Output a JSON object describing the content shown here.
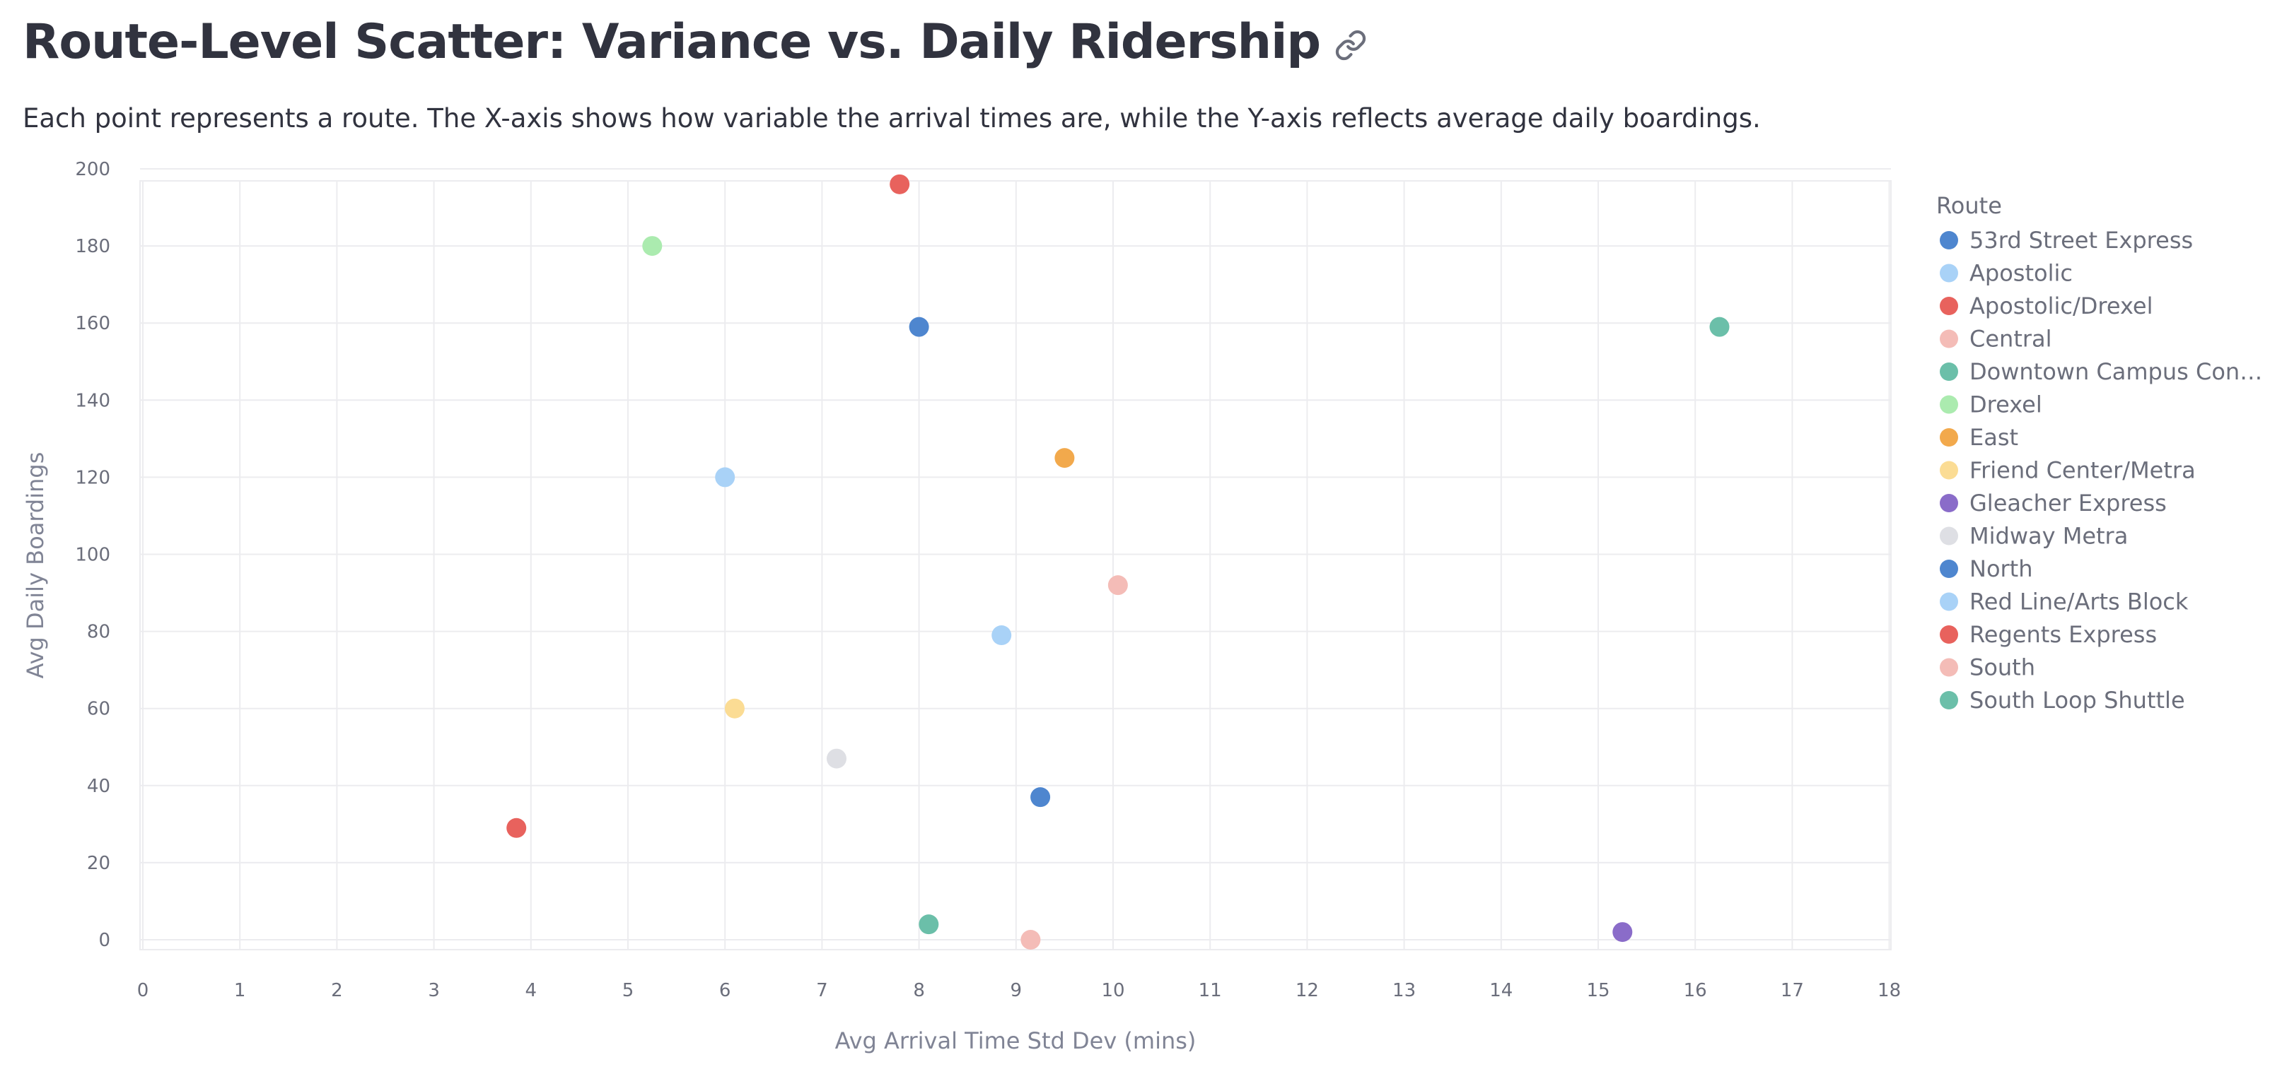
{
  "page": {
    "title": "Route-Level Scatter: Variance vs. Daily Ridership",
    "subtitle": "Each point represents a route. The X-axis shows how variable the arrival times are, while the Y-axis reflects average daily boardings."
  },
  "icons": {
    "anchor": "link-icon"
  },
  "chart_data": {
    "type": "scatter",
    "xlabel": "Avg Arrival Time Std Dev (mins)",
    "ylabel": "Avg Daily Boardings",
    "xlim": [
      0,
      18
    ],
    "ylim": [
      -3,
      200
    ],
    "xticks": [
      0,
      1,
      2,
      3,
      4,
      5,
      6,
      7,
      8,
      9,
      10,
      11,
      12,
      13,
      14,
      15,
      16,
      17,
      18
    ],
    "yticks": [
      0,
      20,
      40,
      60,
      80,
      100,
      120,
      140,
      160,
      180,
      200
    ],
    "grid": true,
    "legend": {
      "title": "Route",
      "placement": "right"
    },
    "series": [
      {
        "name": "53rd Street Express",
        "legend_label": "53rd Street Express",
        "color": "#4e86cf",
        "x": 8.0,
        "y": 159
      },
      {
        "name": "Apostolic",
        "legend_label": "Apostolic",
        "color": "#a9d2f7",
        "x": 6.0,
        "y": 120
      },
      {
        "name": "Apostolic/Drexel",
        "legend_label": "Apostolic/Drexel",
        "color": "#e8625d",
        "x": 7.8,
        "y": 196
      },
      {
        "name": "Central",
        "legend_label": "Central",
        "color": "#f4bcb7",
        "x": 9.15,
        "y": 0
      },
      {
        "name": "Downtown Campus Connector",
        "legend_label": "Downtown Campus Con…",
        "color": "#6bbfa9",
        "x": 16.25,
        "y": 159
      },
      {
        "name": "Drexel",
        "legend_label": "Drexel",
        "color": "#abebaf",
        "x": 5.25,
        "y": 180
      },
      {
        "name": "East",
        "legend_label": "East",
        "color": "#f2a94c",
        "x": 9.5,
        "y": 125
      },
      {
        "name": "Friend Center/Metra",
        "legend_label": "Friend Center/Metra",
        "color": "#fbdc94",
        "x": 6.1,
        "y": 60
      },
      {
        "name": "Gleacher Express",
        "legend_label": "Gleacher Express",
        "color": "#8a6cc9",
        "x": 15.25,
        "y": 2
      },
      {
        "name": "Midway Metra",
        "legend_label": "Midway Metra",
        "color": "#dedfe4",
        "x": 7.15,
        "y": 47
      },
      {
        "name": "North",
        "legend_label": "North",
        "color": "#4e86cf",
        "x": 9.25,
        "y": 37
      },
      {
        "name": "Red Line/Arts Block",
        "legend_label": "Red Line/Arts Block",
        "color": "#a9d2f7",
        "x": 8.85,
        "y": 79
      },
      {
        "name": "Regents Express",
        "legend_label": "Regents Express",
        "color": "#e8625d",
        "x": 3.85,
        "y": 29
      },
      {
        "name": "South",
        "legend_label": "South",
        "color": "#f4bcb7",
        "x": 10.05,
        "y": 92
      },
      {
        "name": "South Loop Shuttle",
        "legend_label": "South Loop Shuttle",
        "color": "#6bbfa9",
        "x": 8.1,
        "y": 4
      }
    ]
  }
}
